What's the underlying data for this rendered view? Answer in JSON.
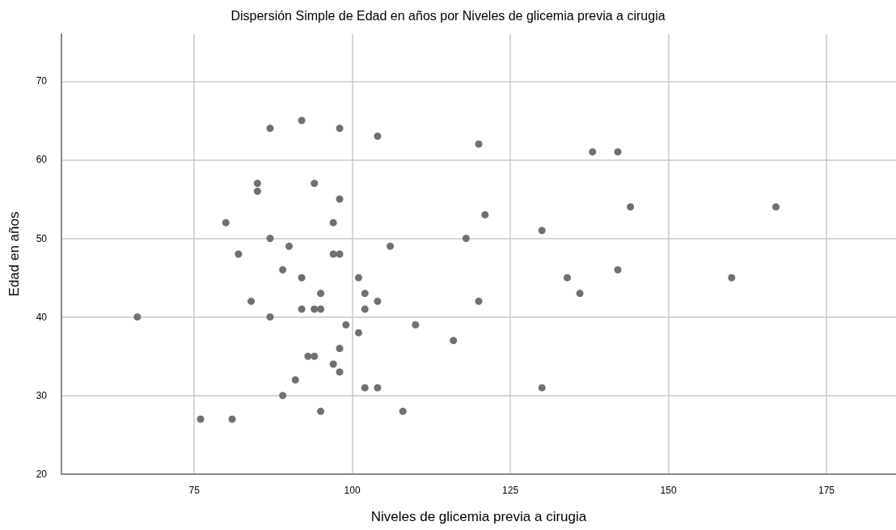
{
  "chart_data": {
    "type": "scatter",
    "title": "Dispersión Simple de Edad en años por Niveles de glicemia previa a cirugia",
    "xlabel": "Niveles de glicemia previa a cirugia",
    "ylabel": "Edad en años",
    "x": [
      87,
      92,
      98,
      104,
      120,
      138,
      142,
      85,
      85,
      94,
      98,
      144,
      167,
      121,
      80,
      97,
      130,
      87,
      118,
      90,
      106,
      82,
      97,
      98,
      89,
      142,
      92,
      101,
      134,
      160,
      95,
      102,
      136,
      84,
      104,
      120,
      92,
      94,
      95,
      102,
      66,
      87,
      99,
      110,
      101,
      116,
      98,
      93,
      94,
      97,
      98,
      91,
      102,
      104,
      130,
      89,
      95,
      108,
      76,
      81
    ],
    "values": [
      64,
      65,
      64,
      63,
      62,
      61,
      61,
      57,
      56,
      57,
      55,
      54,
      54,
      53,
      52,
      52,
      51,
      50,
      50,
      49,
      49,
      48,
      48,
      48,
      46,
      46,
      45,
      45,
      45,
      45,
      43,
      43,
      43,
      42,
      42,
      42,
      41,
      41,
      41,
      41,
      40,
      40,
      39,
      39,
      38,
      37,
      36,
      35,
      35,
      34,
      33,
      32,
      31,
      31,
      31,
      30,
      28,
      28,
      27,
      27
    ],
    "color": "#707070",
    "marker": "circle",
    "xlim": [
      54,
      186
    ],
    "ylim": [
      20,
      76
    ],
    "xticks": [
      75,
      100,
      125,
      150,
      175
    ],
    "yticks": [
      20,
      30,
      40,
      50,
      60,
      70
    ],
    "grid": true
  }
}
